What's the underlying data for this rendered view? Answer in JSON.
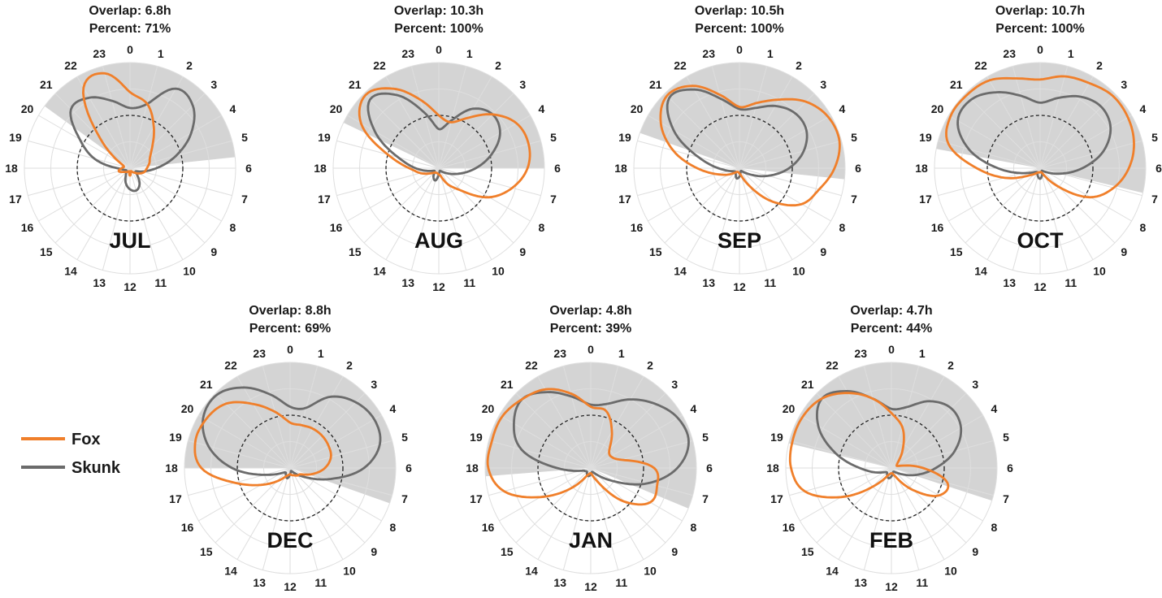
{
  "chart_data": {
    "type": "polar-line",
    "description_units": "activity density over 24-hour clock, 0 at top, clockwise",
    "hours": [
      "0",
      "1",
      "2",
      "3",
      "4",
      "5",
      "6",
      "7",
      "8",
      "9",
      "10",
      "11",
      "12",
      "13",
      "14",
      "15",
      "16",
      "17",
      "18",
      "19",
      "20",
      "21",
      "22",
      "23"
    ],
    "overlap_prefix": "Overlap: ",
    "percent_prefix": "Percent: ",
    "legend": [
      {
        "name": "Fox",
        "color": "#f07f2a"
      },
      {
        "name": "Skunk",
        "color": "#6b6b6b"
      }
    ],
    "colors": {
      "fox": "#f07f2a",
      "skunk": "#6b6b6b",
      "night": "#d4d4d4",
      "grid": "#dedede"
    },
    "max_density": 1.0,
    "panels": [
      {
        "month": "JUL",
        "overlap": "6.8h",
        "percent": "71%",
        "night_start": 20.4,
        "night_end": 5.6,
        "fox": {
          "r": [
            0.72,
            0.63,
            0.45,
            0.3,
            0.22,
            0.19,
            0.16,
            0.14,
            0.1,
            0.06,
            0.04,
            0.03,
            0.07,
            0.03,
            0.04,
            0.05,
            0.07,
            0.11,
            0.08,
            0.06,
            0.12,
            0.4,
            0.88,
            0.93
          ]
        },
        "skunk": {
          "r": [
            0.57,
            0.63,
            0.87,
            0.84,
            0.67,
            0.45,
            0.25,
            0.12,
            0.06,
            0.1,
            0.18,
            0.22,
            0.2,
            0.15,
            0.08,
            0.05,
            0.04,
            0.06,
            0.12,
            0.35,
            0.55,
            0.79,
            0.77,
            0.66
          ]
        }
      },
      {
        "month": "AUG",
        "overlap": "10.3h",
        "percent": "100%",
        "night_start": 19.7,
        "night_end": 6.0,
        "fox": {
          "r": [
            0.5,
            0.45,
            0.55,
            0.72,
            0.85,
            0.88,
            0.84,
            0.72,
            0.55,
            0.3,
            0.18,
            0.08,
            0.06,
            0.05,
            0.05,
            0.06,
            0.1,
            0.18,
            0.28,
            0.5,
            0.85,
            0.98,
            0.87,
            0.67
          ]
        },
        "skunk": {
          "r": [
            0.37,
            0.47,
            0.65,
            0.72,
            0.67,
            0.52,
            0.35,
            0.2,
            0.1,
            0.05,
            0.03,
            0.03,
            0.06,
            0.12,
            0.1,
            0.06,
            0.05,
            0.1,
            0.22,
            0.4,
            0.7,
            0.92,
            0.8,
            0.55
          ]
        }
      },
      {
        "month": "SEP",
        "overlap": "10.5h",
        "percent": "100%",
        "night_start": 19.3,
        "night_end": 6.4,
        "fox": {
          "r": [
            0.58,
            0.64,
            0.75,
            0.89,
            0.97,
            0.98,
            0.9,
            0.78,
            0.68,
            0.45,
            0.2,
            0.08,
            0.05,
            0.04,
            0.04,
            0.06,
            0.12,
            0.22,
            0.4,
            0.65,
            0.86,
            0.97,
            0.9,
            0.72
          ]
        },
        "skunk": {
          "r": [
            0.56,
            0.59,
            0.68,
            0.74,
            0.73,
            0.63,
            0.47,
            0.28,
            0.12,
            0.05,
            0.03,
            0.04,
            0.08,
            0.1,
            0.07,
            0.05,
            0.06,
            0.1,
            0.2,
            0.4,
            0.72,
            0.94,
            0.86,
            0.68
          ]
        }
      },
      {
        "month": "OCT",
        "overlap": "10.7h",
        "percent": "100%",
        "night_start": 18.7,
        "night_end": 6.9,
        "fox": {
          "r": [
            0.84,
            0.9,
            0.93,
            0.97,
            0.96,
            0.92,
            0.84,
            0.72,
            0.55,
            0.25,
            0.08,
            0.04,
            0.04,
            0.04,
            0.05,
            0.08,
            0.15,
            0.35,
            0.6,
            0.9,
            0.98,
            0.98,
            0.96,
            0.88
          ]
        },
        "skunk": {
          "r": [
            0.62,
            0.69,
            0.78,
            0.82,
            0.77,
            0.62,
            0.4,
            0.2,
            0.08,
            0.04,
            0.03,
            0.07,
            0.1,
            0.08,
            0.05,
            0.05,
            0.08,
            0.18,
            0.4,
            0.7,
            0.9,
            0.92,
            0.83,
            0.71
          ]
        }
      },
      {
        "month": "DEC",
        "overlap": "8.8h",
        "percent": "69%",
        "night_start": 18.0,
        "night_end": 7.3,
        "fox": {
          "r": [
            0.43,
            0.42,
            0.43,
            0.43,
            0.42,
            0.4,
            0.33,
            0.22,
            0.12,
            0.1,
            0.08,
            0.07,
            0.06,
            0.07,
            0.1,
            0.18,
            0.32,
            0.54,
            0.84,
            0.93,
            0.92,
            0.86,
            0.7,
            0.55
          ]
        },
        "skunk": {
          "r": [
            0.58,
            0.59,
            0.78,
            0.88,
            0.92,
            0.88,
            0.7,
            0.4,
            0.18,
            0.08,
            0.04,
            0.03,
            0.06,
            0.1,
            0.08,
            0.06,
            0.1,
            0.25,
            0.55,
            0.8,
            0.95,
            0.98,
            0.88,
            0.72
          ]
        }
      },
      {
        "month": "JAN",
        "overlap": "4.8h",
        "percent": "39%",
        "night_start": 17.7,
        "night_end": 7.5,
        "fox": {
          "r": [
            0.58,
            0.56,
            0.4,
            0.25,
            0.22,
            0.3,
            0.6,
            0.65,
            0.65,
            0.45,
            0.18,
            0.08,
            0.05,
            0.06,
            0.1,
            0.28,
            0.55,
            0.85,
            0.97,
            0.97,
            0.97,
            0.92,
            0.86,
            0.73
          ]
        },
        "skunk": {
          "r": [
            0.6,
            0.63,
            0.75,
            0.86,
            0.95,
            0.96,
            0.82,
            0.56,
            0.25,
            0.1,
            0.05,
            0.04,
            0.06,
            0.08,
            0.07,
            0.05,
            0.06,
            0.1,
            0.32,
            0.68,
            0.84,
            0.92,
            0.83,
            0.7
          ]
        }
      },
      {
        "month": "FEB",
        "overlap": "4.7h",
        "percent": "44%",
        "night_start": 18.9,
        "night_end": 7.2,
        "fox": {
          "r": [
            0.52,
            0.4,
            0.22,
            0.1,
            0.06,
            0.08,
            0.3,
            0.55,
            0.52,
            0.3,
            0.12,
            0.06,
            0.05,
            0.06,
            0.1,
            0.25,
            0.55,
            0.85,
            0.95,
            0.97,
            0.97,
            0.93,
            0.82,
            0.68
          ]
        },
        "skunk": {
          "r": [
            0.56,
            0.6,
            0.73,
            0.8,
            0.76,
            0.62,
            0.42,
            0.25,
            0.12,
            0.06,
            0.04,
            0.05,
            0.08,
            0.1,
            0.08,
            0.06,
            0.08,
            0.16,
            0.3,
            0.55,
            0.8,
            0.93,
            0.84,
            0.68
          ]
        }
      }
    ]
  }
}
